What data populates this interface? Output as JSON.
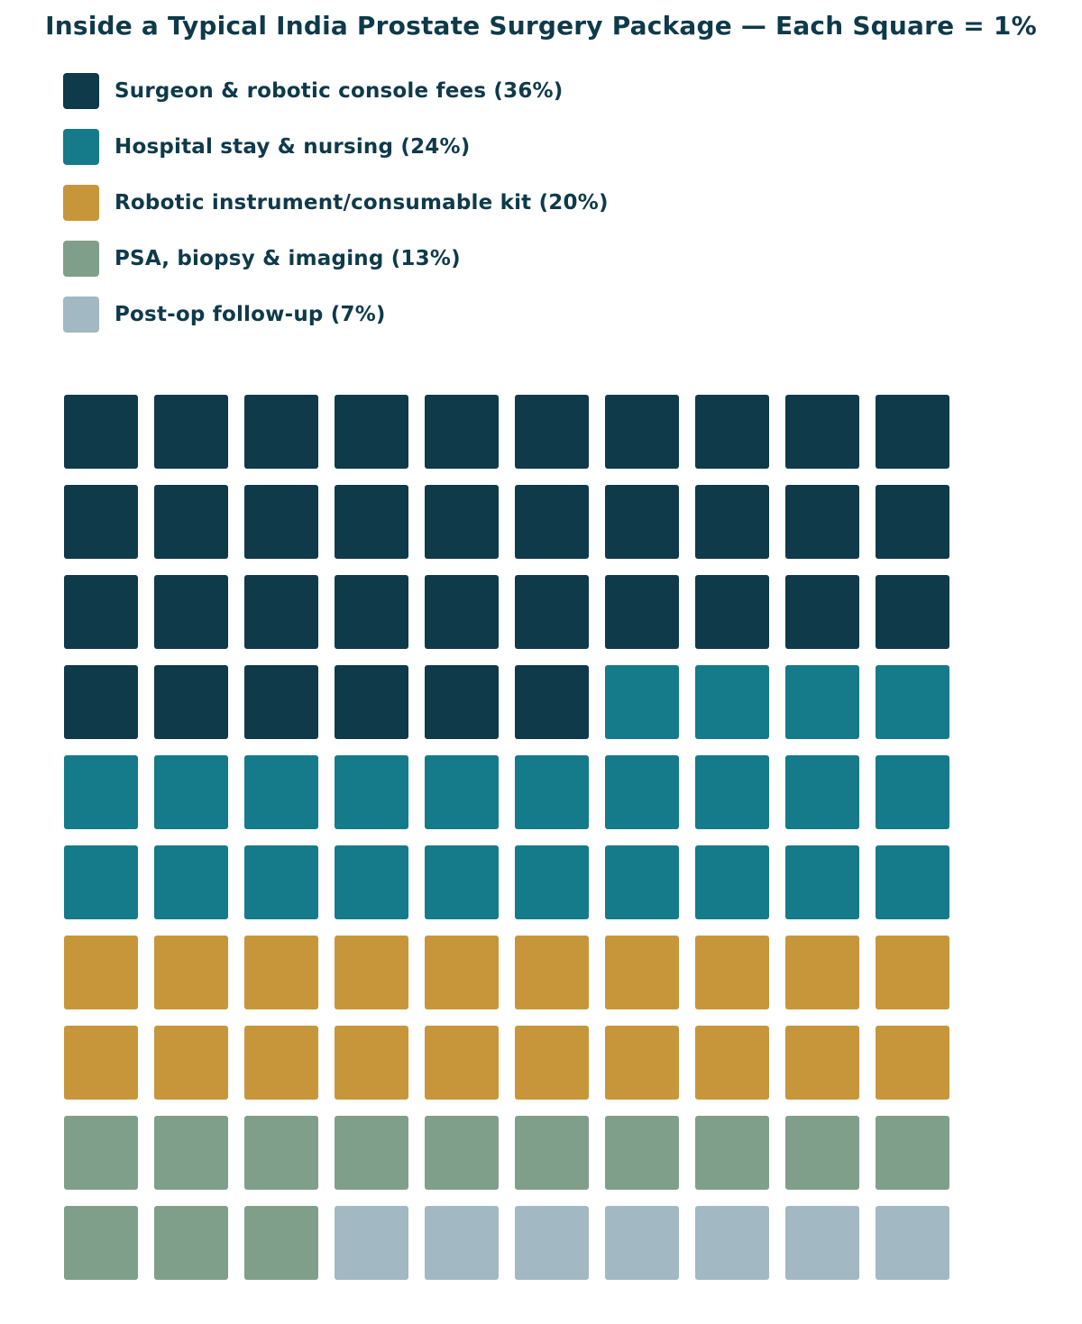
{
  "chart_data": {
    "type": "waffle",
    "title": "Inside a Typical India Prostate Surgery Package — Each Square = 1%",
    "grid": {
      "rows": 10,
      "cols": 10
    },
    "unit_value": 1,
    "legend_position": "top-left",
    "categories": [
      {
        "name": "Surgeon & robotic console fees (36%)",
        "value": 36,
        "color": "#0e3a4a"
      },
      {
        "name": "Hospital stay & nursing (24%)",
        "value": 24,
        "color": "#157a8a"
      },
      {
        "name": "Robotic instrument/consumable kit (20%)",
        "value": 20,
        "color": "#c8963a"
      },
      {
        "name": "PSA, biopsy & imaging (13%)",
        "value": 13,
        "color": "#7f9f8a"
      },
      {
        "name": "Post-op follow-up (7%)",
        "value": 7,
        "color": "#a2b8c2"
      }
    ]
  }
}
